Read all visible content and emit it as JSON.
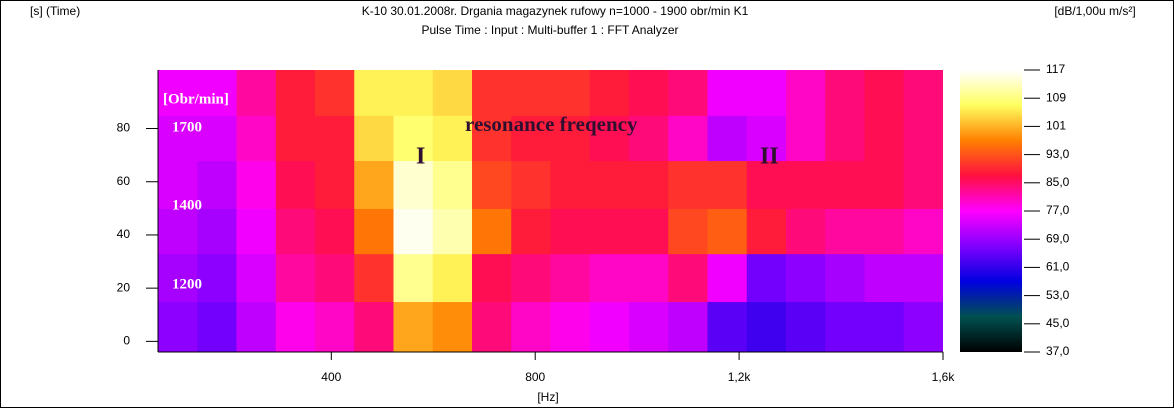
{
  "chart_data": {
    "type": "heatmap",
    "title": "K-10 30.01.2008r. Drgania magazynek rufowy n=1000 - 1900 obr/min K1",
    "subtitle": "Pulse Time : Input : Multi-buffer 1 : FFT Analyzer",
    "y_label": "[s] (Time)",
    "x_label": "[Hz]",
    "colorbar_label": "[dB/1,00u m/s²]",
    "annotations": [
      "[Obr/min]",
      "1700",
      "1400",
      "1200",
      "resonance freqency",
      "I",
      "II"
    ],
    "xlim": [
      60,
      1600
    ],
    "ylim": [
      -4,
      102
    ],
    "xticks": [
      400,
      800,
      {
        "value": 1200,
        "label": "1,2k"
      },
      {
        "value": 1600,
        "label": "1,6k"
      }
    ],
    "yticks": [
      0,
      20,
      40,
      60,
      80
    ],
    "clim": [
      37,
      117
    ],
    "cticks": [
      117,
      109,
      101,
      {
        "value": 93,
        "label": "93,0"
      },
      {
        "value": 85,
        "label": "85,0"
      },
      {
        "value": 77,
        "label": "77,0"
      },
      {
        "value": 69,
        "label": "69,0"
      },
      {
        "value": 61,
        "label": "61,0"
      },
      {
        "value": 53,
        "label": "53,0"
      },
      {
        "value": 45,
        "label": "45,0"
      },
      {
        "value": 37,
        "label": "37,0"
      }
    ],
    "colormap": [
      "#000000",
      "#005050",
      "#0000e0",
      "#8000ff",
      "#ff00ff",
      "#ff1040",
      "#ff8000",
      "#ffff60",
      "#ffffff"
    ],
    "xbins": [
      60,
      137,
      214,
      291,
      368,
      445,
      522,
      599,
      676,
      753,
      830,
      907,
      984,
      1061,
      1138,
      1215,
      1292,
      1369,
      1446,
      1523,
      1600
    ],
    "ybins": [
      -4,
      15,
      33,
      50,
      68,
      85,
      102
    ],
    "z": [
      [
        68,
        66,
        72,
        78,
        80,
        84,
        100,
        98,
        84,
        80,
        78,
        76,
        74,
        72,
        64,
        62,
        64,
        66,
        66,
        68
      ],
      [
        70,
        68,
        74,
        82,
        84,
        90,
        110,
        106,
        86,
        84,
        82,
        80,
        80,
        84,
        76,
        66,
        68,
        70,
        72,
        72
      ],
      [
        72,
        70,
        76,
        84,
        86,
        96,
        116,
        112,
        96,
        88,
        86,
        86,
        86,
        92,
        94,
        88,
        84,
        82,
        82,
        80
      ],
      [
        74,
        72,
        78,
        86,
        88,
        100,
        114,
        110,
        92,
        90,
        88,
        88,
        88,
        90,
        90,
        86,
        86,
        86,
        86,
        84
      ],
      [
        74,
        74,
        80,
        88,
        88,
        104,
        108,
        106,
        90,
        88,
        88,
        86,
        84,
        80,
        72,
        74,
        80,
        84,
        86,
        84
      ],
      [
        76,
        76,
        82,
        88,
        90,
        106,
        106,
        104,
        90,
        90,
        90,
        88,
        86,
        84,
        76,
        76,
        80,
        84,
        86,
        84
      ]
    ]
  }
}
